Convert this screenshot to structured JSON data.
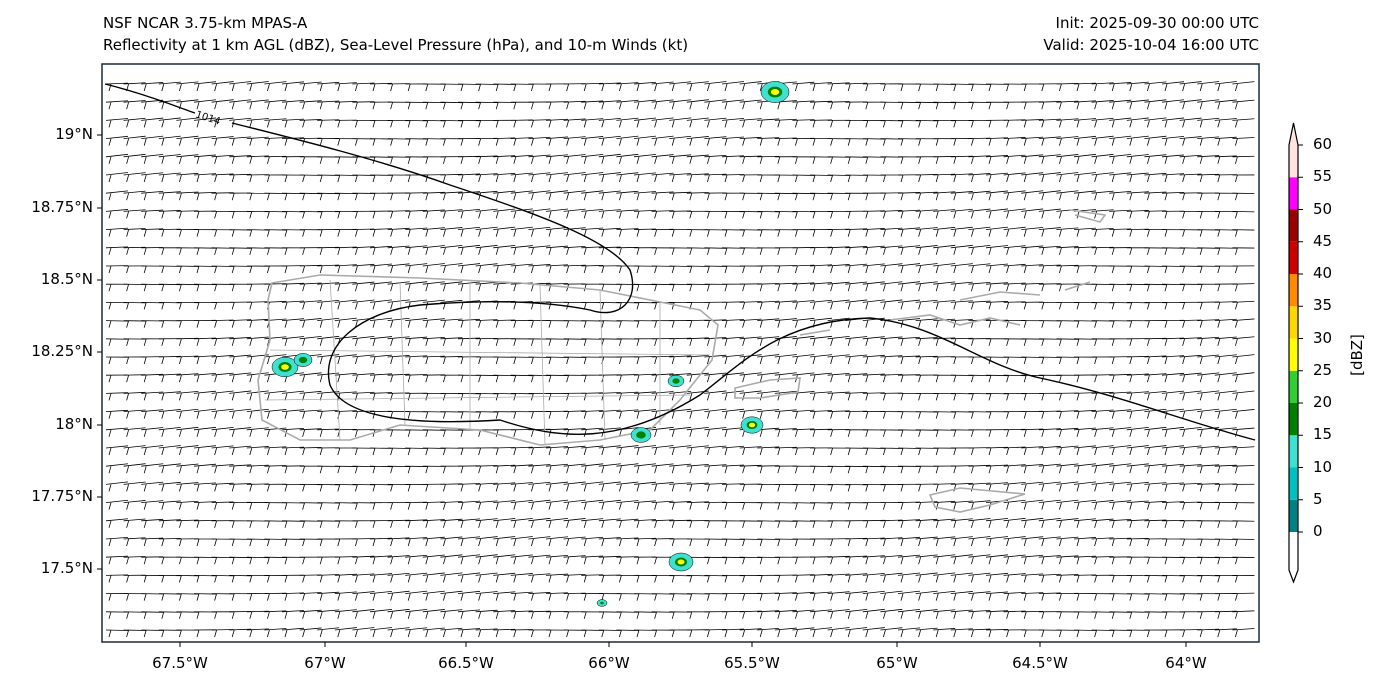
{
  "title": {
    "left_line1": "NSF NCAR 3.75-km MPAS-A",
    "left_line2": "Reflectivity at 1 km AGL (dBZ), Sea-Level Pressure (hPa), and 10-m Winds (kt)",
    "right_line1": "Init: 2025-09-30 00:00 UTC",
    "right_line2": "Valid: 2025-10-04 16:00 UTC"
  },
  "map": {
    "x_ticks": [
      "67.5°W",
      "67°W",
      "66.5°W",
      "66°W",
      "65.5°W",
      "65°W",
      "64.5°W",
      "64°W"
    ],
    "y_ticks": [
      "19°N",
      "18.75°N",
      "18.5°N",
      "18.25°N",
      "18°N",
      "17.75°N",
      "17.5°N"
    ],
    "contour_label": "1014",
    "coastline_color": "#aaaaaa",
    "contour_color": "#000000"
  },
  "colorbar": {
    "label": "[dBZ]",
    "ticks": [
      "0",
      "5",
      "10",
      "15",
      "20",
      "25",
      "30",
      "35",
      "40",
      "45",
      "50",
      "55",
      "60"
    ],
    "colors": [
      "#008080",
      "#00c0c0",
      "#40e0d0",
      "#008000",
      "#32cd32",
      "#ffff00",
      "#ffd700",
      "#ff8c00",
      "#cc0000",
      "#990000",
      "#ff00ff",
      "#ffe4e1"
    ]
  }
}
